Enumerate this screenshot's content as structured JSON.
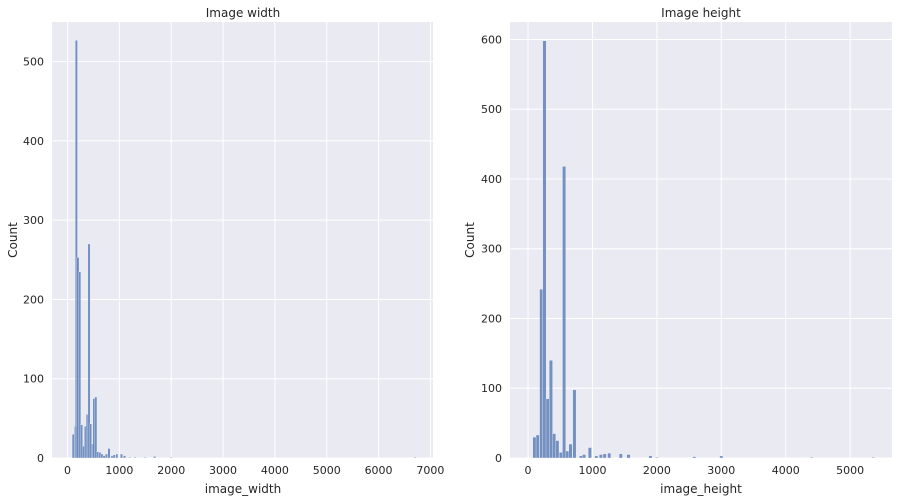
{
  "chart_data": [
    {
      "type": "bar",
      "title": "Image width",
      "xlabel": "image_width",
      "ylabel": "Count",
      "xlim": [
        -300,
        7050
      ],
      "ylim": [
        0,
        550
      ],
      "xticks": [
        0,
        1000,
        2000,
        3000,
        4000,
        5000,
        6000,
        7000
      ],
      "yticks": [
        0,
        100,
        200,
        300,
        400,
        500
      ],
      "grid": true,
      "bin_width": 45,
      "bins": [
        [
          110,
          30
        ],
        [
          155,
          40
        ],
        [
          170,
          527
        ],
        [
          200,
          253
        ],
        [
          235,
          235
        ],
        [
          270,
          42
        ],
        [
          310,
          15
        ],
        [
          345,
          40
        ],
        [
          380,
          55
        ],
        [
          415,
          270
        ],
        [
          445,
          43
        ],
        [
          480,
          18
        ],
        [
          510,
          75
        ],
        [
          545,
          77
        ],
        [
          580,
          8
        ],
        [
          625,
          7
        ],
        [
          665,
          5
        ],
        [
          705,
          3
        ],
        [
          750,
          5
        ],
        [
          800,
          12
        ],
        [
          860,
          3
        ],
        [
          900,
          4
        ],
        [
          950,
          5
        ],
        [
          1040,
          5
        ],
        [
          1100,
          3
        ],
        [
          1200,
          1
        ],
        [
          1300,
          1
        ],
        [
          1500,
          1
        ],
        [
          1680,
          2
        ],
        [
          2000,
          1
        ],
        [
          6700,
          1
        ]
      ],
      "bar_color": "#4c72b0"
    },
    {
      "type": "bar",
      "title": "Image height",
      "xlabel": "image_height",
      "ylabel": "Count",
      "xlim": [
        -280,
        5650
      ],
      "ylim": [
        0,
        625
      ],
      "xticks": [
        0,
        1000,
        2000,
        3000,
        4000,
        5000
      ],
      "yticks": [
        0,
        100,
        200,
        300,
        400,
        500,
        600
      ],
      "grid": true,
      "bin_width": 52,
      "bins": [
        [
          100,
          30
        ],
        [
          150,
          33
        ],
        [
          205,
          242
        ],
        [
          255,
          598
        ],
        [
          305,
          85
        ],
        [
          355,
          140
        ],
        [
          405,
          35
        ],
        [
          455,
          25
        ],
        [
          510,
          8
        ],
        [
          560,
          418
        ],
        [
          610,
          10
        ],
        [
          660,
          20
        ],
        [
          720,
          98
        ],
        [
          820,
          3
        ],
        [
          870,
          5
        ],
        [
          960,
          15
        ],
        [
          1060,
          3
        ],
        [
          1130,
          5
        ],
        [
          1190,
          6
        ],
        [
          1260,
          7
        ],
        [
          1440,
          6
        ],
        [
          1560,
          5
        ],
        [
          1900,
          3
        ],
        [
          2000,
          1
        ],
        [
          2580,
          2
        ],
        [
          3000,
          3
        ],
        [
          4400,
          1
        ],
        [
          5360,
          1
        ]
      ],
      "bar_color": "#4c72b0"
    }
  ]
}
